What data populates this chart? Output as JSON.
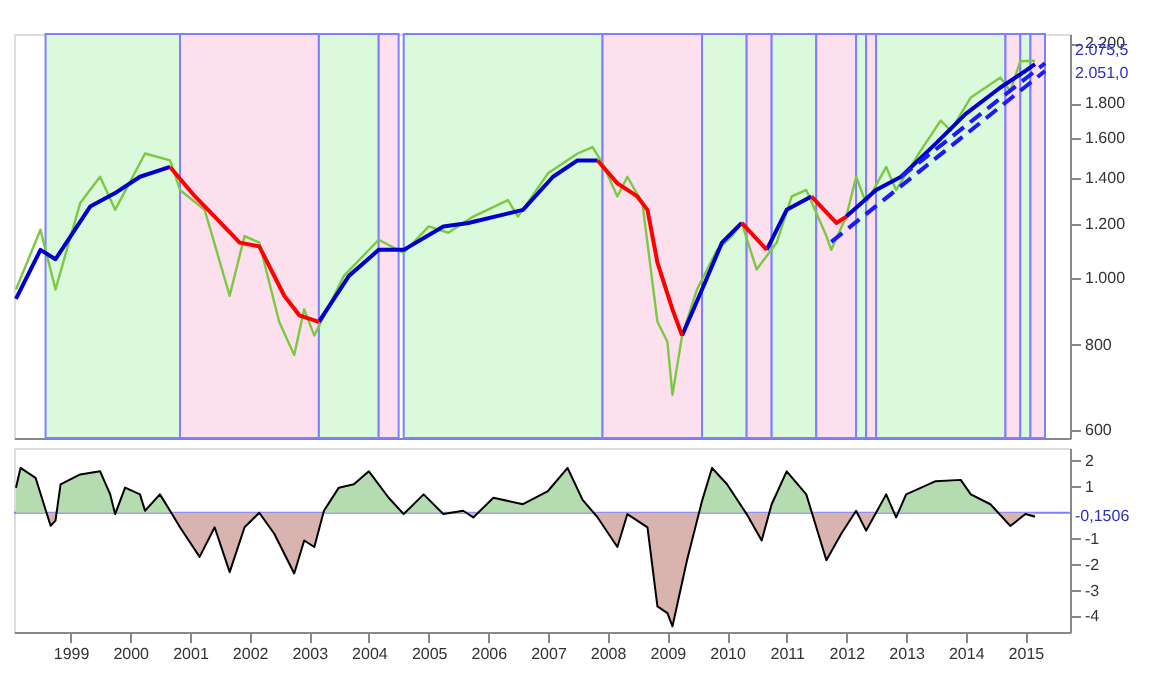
{
  "chart_data": [
    {
      "type": "line",
      "log": true,
      "tick_labels": "y",
      "xlim": [
        "1998-01-20",
        "2015-10"
      ],
      "ylim": [
        585,
        2270
      ],
      "yticks": [
        600,
        800,
        {
          "value": 1000,
          "label": "1.000"
        },
        {
          "value": 1200,
          "label": "1.200"
        },
        {
          "value": 1400,
          "label": "1.400"
        },
        {
          "value": 1600,
          "label": "1.600"
        },
        {
          "value": 1800,
          "label": "1.800"
        },
        {
          "value": 2200,
          "label": "2.200"
        }
      ],
      "bands": [
        {
          "axis": "x",
          "from": "1998-08",
          "to": "2000-11",
          "color": "#dbfadb"
        },
        {
          "axis": "x",
          "from": "2000-11",
          "to": "2003-03",
          "color": "#fde0ee"
        },
        {
          "axis": "x",
          "from": "2003-03",
          "to": "2004-03",
          "color": "#dbfadb"
        },
        {
          "axis": "x",
          "from": "2004-03",
          "to": "2004-07",
          "color": "#fde0ee"
        },
        {
          "axis": "x",
          "from": "2004-08",
          "to": "2007-12",
          "color": "#dbfadb"
        },
        {
          "axis": "x",
          "from": "2007-12",
          "to": "2009-08",
          "color": "#fde0ee"
        },
        {
          "axis": "x",
          "from": "2009-08",
          "to": "2010-05",
          "color": "#dbfadb"
        },
        {
          "axis": "x",
          "from": "2010-05",
          "to": "2010-10",
          "color": "#fde0ee"
        },
        {
          "axis": "x",
          "from": "2010-10",
          "to": "2011-07",
          "color": "#dbfadb"
        },
        {
          "axis": "x",
          "from": "2011-07",
          "to": "2012-03",
          "color": "#fde0ee"
        },
        {
          "axis": "x",
          "from": "2012-03",
          "to": "2012-05",
          "color": "#dbfadb"
        },
        {
          "axis": "x",
          "from": "2012-05",
          "to": "2012-07",
          "color": "#fde0ee"
        },
        {
          "axis": "x",
          "from": "2012-07",
          "to": "2014-09",
          "color": "#dbfadb"
        },
        {
          "axis": "x",
          "from": "2014-09",
          "to": "2014-12",
          "color": "#fde0ee"
        },
        {
          "axis": "x",
          "from": "2014-12",
          "to": "2015-02",
          "color": "#dbfadb"
        },
        {
          "axis": "x",
          "from": "2015-02",
          "to": "2015-05",
          "color": "#fde0ee"
        }
      ],
      "series": [
        {
          "color": "#7ac943",
          "x": [
            "1998-02",
            "1998-07",
            "1998-10",
            "1999-03",
            "1999-07",
            "1999-10",
            "2000-04",
            "2000-09",
            "2000-11",
            "2001-04",
            "2001-09",
            "2001-12",
            "2002-03",
            "2002-07",
            "2002-10",
            "2002-12",
            "2003-02",
            "2003-08",
            "2004-03",
            "2004-08",
            "2005-01",
            "2005-05",
            "2005-10",
            "2006-05",
            "2006-07",
            "2007-01",
            "2007-07",
            "2007-10",
            "2007-12",
            "2008-03",
            "2008-05",
            "2008-08",
            "2008-11",
            "2009-01",
            "2009-02",
            "2009-04",
            "2009-07",
            "2009-11",
            "2010-02",
            "2010-04",
            "2010-07",
            "2010-11",
            "2011-02",
            "2011-05",
            "2011-09",
            "2011-10",
            "2012-01",
            "2012-03",
            "2012-05",
            "2012-09",
            "2012-11",
            "2013-04",
            "2013-08",
            "2013-10",
            "2014-02",
            "2014-08",
            "2014-10",
            "2014-12",
            "2015-03"
          ],
          "values": [
            963,
            1177,
            963,
            1287,
            1406,
            1258,
            1520,
            1485,
            1345,
            1258,
            943,
            1152,
            1127,
            864,
            773,
            901,
            825,
            1008,
            1138,
            1089,
            1190,
            1165,
            1230,
            1300,
            1230,
            1422,
            1520,
            1553,
            1470,
            1316,
            1406,
            1287,
            864,
            808,
            676,
            825,
            963,
            1100,
            1152,
            1204,
            1030,
            1127,
            1316,
            1345,
            1152,
            1100,
            1230,
            1406,
            1287,
            1453,
            1345,
            1536,
            1698,
            1641,
            1835,
            1961,
            1875,
            2072,
            2075.5
          ]
        },
        {
          "color": "#0000cc",
          "x": [
            "1998-02",
            "1998-07",
            "1998-10",
            "1999-05",
            "1999-10",
            "2000-03",
            "2000-09",
            "2001-06",
            "2003-03",
            "2003-09",
            "2004-03",
            "2004-08",
            "2005-04",
            "2005-09",
            "2006-08",
            "2007-02",
            "2007-07",
            "2007-11",
            "2008-06",
            "2009-04",
            "2009-08",
            "2009-12",
            "2010-04",
            "2010-06",
            "2010-09",
            "2011-01",
            "2011-06",
            "2011-09",
            "2012-01",
            "2012-07",
            "2012-12",
            "2013-07",
            "2014-01",
            "2014-08",
            "2015-01",
            "2015-03"
          ],
          "values": [
            933,
            1100,
            1066,
            1272,
            1331,
            1406,
            1453,
            null,
            864,
            1008,
            1100,
            1100,
            1190,
            1204,
            1258,
            1406,
            1485,
            1485,
            null,
            825,
            963,
            1127,
            1204,
            null,
            1100,
            1258,
            1316,
            null,
            1230,
            1345,
            1406,
            1571,
            1736,
            1897,
            2005,
            2051.0
          ]
        },
        {
          "color": "#ff0000",
          "x": [
            "2000-09",
            "2001-02",
            "2001-06",
            "2001-11",
            "2002-03",
            "2002-08",
            "2002-11",
            "2003-03",
            "2005-01",
            "2007-11",
            "2008-03",
            "2008-07",
            "2008-09",
            "2008-11",
            "2009-02",
            "2009-04",
            "2009-12",
            "2010-04",
            "2010-09",
            "2011-01",
            "2011-06",
            "2011-11",
            "2012-01"
          ],
          "values": [
            1453,
            1316,
            1230,
            1127,
            1113,
            943,
            883,
            864,
            null,
            1485,
            1375,
            1316,
            1258,
            1054,
            901,
            825,
            null,
            1204,
            1100,
            null,
            1316,
            1204,
            1230
          ]
        },
        {
          "color": "#1a1aff",
          "line_style": "dashed",
          "x": [
            "2011-10",
            "2015-05"
          ],
          "values": [
            1130,
            2005
          ]
        },
        {
          "color": "#1a1aff",
          "line_style": "dashed",
          "x": [
            "2012-12",
            "2015-05"
          ],
          "values": [
            1406,
            2058
          ]
        }
      ],
      "annotations": [
        {
          "text": "2.075,5",
          "x": "2015-03",
          "y": 2075.5
        },
        {
          "text": "2.051,0",
          "x": "2015-03",
          "y": 2051.0
        }
      ]
    },
    {
      "type": "area",
      "xlim": [
        "1998-01-20",
        "2015-10"
      ],
      "ylim": [
        -4.6,
        2.5
      ],
      "yticks": [
        2,
        1,
        -1,
        -2,
        -3,
        -4
      ],
      "xticks": [
        "1999",
        "2000",
        "2001",
        "2002",
        "2003",
        "2004",
        "2005",
        "2006",
        "2007",
        "2008",
        "2009",
        "2010",
        "2011",
        "2012",
        "2013",
        "2014",
        "2015"
      ],
      "ref_lines": [
        {
          "axis": "y",
          "value": 0,
          "color": "#7f7fff"
        }
      ],
      "series": [
        {
          "color": "#000000",
          "colors": [
            "#b5dbb0",
            "#b5dbb0",
            "#b5dbb0",
            "#d9b3b0",
            "#d9b3b0",
            "#b5dbb0",
            "#b5dbb0",
            "#b5dbb0",
            "#b5dbb0",
            "#d9b3b0",
            "#b5dbb0",
            "#b5dbb0",
            "#b5dbb0",
            "#b5dbb0",
            "#b5dbb0",
            "#d9b3b0",
            "#d9b3b0",
            "#d9b3b0",
            "#d9b3b0",
            "#d9b3b0",
            "#d9b3b0",
            "#d9b3b0",
            "#d9b3b0",
            "#d9b3b0",
            "#d9b3b0",
            "#b5dbb0",
            "#b5dbb0",
            "#b5dbb0",
            "#b5dbb0",
            "#b5dbb0",
            "#d9b3b0",
            "#b5dbb0",
            "#d9b3b0",
            "#b5dbb0",
            "#d9b3b0",
            "#b5dbb0",
            "#b5dbb0",
            "#b5dbb0",
            "#b5dbb0",
            "#b5dbb0",
            "#d9b3b0",
            "#d9b3b0",
            "#d9b3b0",
            "#d9b3b0",
            "#d9b3b0",
            "#d9b3b0",
            "#d9b3b0",
            "#d9b3b0",
            "#b5dbb0",
            "#b5dbb0",
            "#b5dbb0",
            "#d9b3b0",
            "#d9b3b0",
            "#b5dbb0",
            "#b5dbb0",
            "#b5dbb0",
            "#d9b3b0",
            "#d9b3b0",
            "#b5dbb0",
            "#d9b3b0",
            "#b5dbb0",
            "#d9b3b0",
            "#b5dbb0",
            "#b5dbb0",
            "#b5dbb0",
            "#b5dbb0",
            "#b5dbb0",
            "#d9b3b0",
            "#d9b3b0",
            "#d9b3b0"
          ],
          "x": [
            "1998-02",
            "1998-03",
            "1998-06",
            "1998-09",
            "1998-10",
            "1998-11",
            "1999-03",
            "1999-07",
            "1999-09",
            "1999-10",
            "1999-12",
            "2000-03",
            "2000-04",
            "2000-07",
            "2000-09",
            "2000-11",
            "2001-03",
            "2001-06",
            "2001-09",
            "2001-12",
            "2002-03",
            "2002-06",
            "2002-10",
            "2002-12",
            "2003-02",
            "2003-04",
            "2003-07",
            "2003-10",
            "2004-01",
            "2004-05",
            "2004-08",
            "2004-12",
            "2005-04",
            "2005-08",
            "2005-10",
            "2006-02",
            "2006-08",
            "2007-01",
            "2007-05",
            "2007-08",
            "2007-11",
            "2008-03",
            "2008-05",
            "2008-09",
            "2008-11",
            "2009-01",
            "2009-02",
            "2009-05",
            "2009-08",
            "2009-10",
            "2010-01",
            "2010-05",
            "2010-08",
            "2010-10",
            "2011-01",
            "2011-05",
            "2011-09",
            "2011-12",
            "2012-03",
            "2012-05",
            "2012-09",
            "2012-11",
            "2013-01",
            "2013-07",
            "2013-12",
            "2014-02",
            "2014-06",
            "2014-10",
            "2015-01",
            "2015-03"
          ],
          "values": [
            0.97,
            1.73,
            1.35,
            -0.5,
            -0.3,
            1.1,
            1.48,
            1.6,
            0.71,
            -0.05,
            0.97,
            0.71,
            0.08,
            0.71,
            0.08,
            -0.56,
            -1.7,
            -0.56,
            -2.29,
            -0.56,
            0,
            -0.81,
            -2.34,
            -1.07,
            -1.32,
            0.08,
            0.97,
            1.1,
            1.6,
            0.58,
            -0.05,
            0.71,
            -0.05,
            0.08,
            -0.18,
            0.58,
            0.33,
            0.84,
            1.73,
            0.5,
            -0.18,
            -1.32,
            -0.05,
            -0.56,
            -3.61,
            -3.87,
            -4.38,
            -1.83,
            0.46,
            1.73,
            1.1,
            -0.05,
            -1.07,
            0.33,
            1.6,
            0.71,
            -1.83,
            -0.81,
            0.08,
            -0.69,
            0.71,
            -0.18,
            0.71,
            1.22,
            1.27,
            0.71,
            0.33,
            -0.51,
            -0.05,
            -0.15
          ]
        }
      ],
      "annotations": [
        {
          "text": "-0,1506",
          "x": "2015-03",
          "y": -0.1506
        }
      ]
    }
  ]
}
